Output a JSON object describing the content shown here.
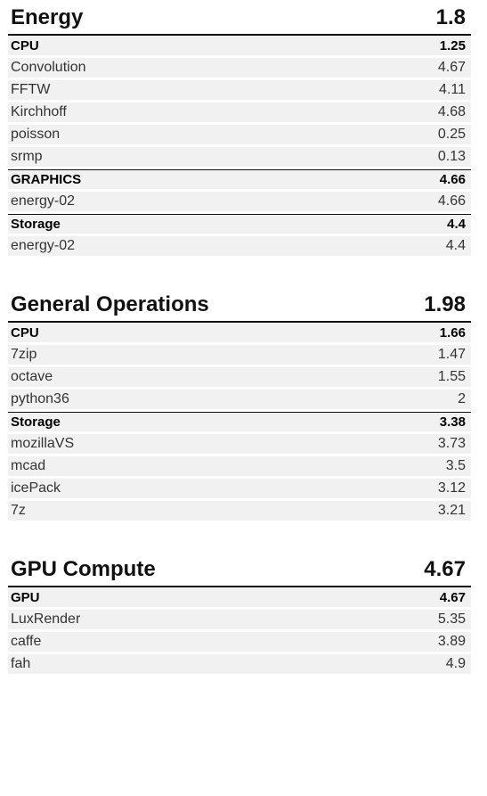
{
  "sections": [
    {
      "title": "Energy",
      "score": "1.8",
      "rows": [
        {
          "kind": "category",
          "label": "CPU",
          "value": "1.25"
        },
        {
          "kind": "item",
          "label": "Convolution",
          "value": "4.67"
        },
        {
          "kind": "item",
          "label": "FFTW",
          "value": "4.11"
        },
        {
          "kind": "item",
          "label": "Kirchhoff",
          "value": "4.68"
        },
        {
          "kind": "item",
          "label": "poisson",
          "value": "0.25"
        },
        {
          "kind": "item",
          "label": "srmp",
          "value": "0.13"
        },
        {
          "kind": "category",
          "label": "GRAPHICS",
          "value": "4.66"
        },
        {
          "kind": "item",
          "label": "energy-02",
          "value": "4.66"
        },
        {
          "kind": "category",
          "label": "Storage",
          "value": "4.4"
        },
        {
          "kind": "item",
          "label": "energy-02",
          "value": "4.4"
        }
      ]
    },
    {
      "title": "General Operations",
      "score": "1.98",
      "rows": [
        {
          "kind": "category",
          "label": "CPU",
          "value": "1.66"
        },
        {
          "kind": "item",
          "label": "7zip",
          "value": "1.47"
        },
        {
          "kind": "item",
          "label": "octave",
          "value": "1.55"
        },
        {
          "kind": "item",
          "label": "python36",
          "value": "2"
        },
        {
          "kind": "category",
          "label": "Storage",
          "value": "3.38"
        },
        {
          "kind": "item",
          "label": "mozillaVS",
          "value": "3.73"
        },
        {
          "kind": "item",
          "label": "mcad",
          "value": "3.5"
        },
        {
          "kind": "item",
          "label": "icePack",
          "value": "3.12"
        },
        {
          "kind": "item",
          "label": "7z",
          "value": "3.21"
        }
      ]
    },
    {
      "title": "GPU Compute",
      "score": "4.67",
      "rows": [
        {
          "kind": "category",
          "label": "GPU",
          "value": "4.67"
        },
        {
          "kind": "item",
          "label": "LuxRender",
          "value": "5.35"
        },
        {
          "kind": "item",
          "label": "caffe",
          "value": "3.89"
        },
        {
          "kind": "item",
          "label": "fah",
          "value": "4.9"
        }
      ]
    }
  ]
}
